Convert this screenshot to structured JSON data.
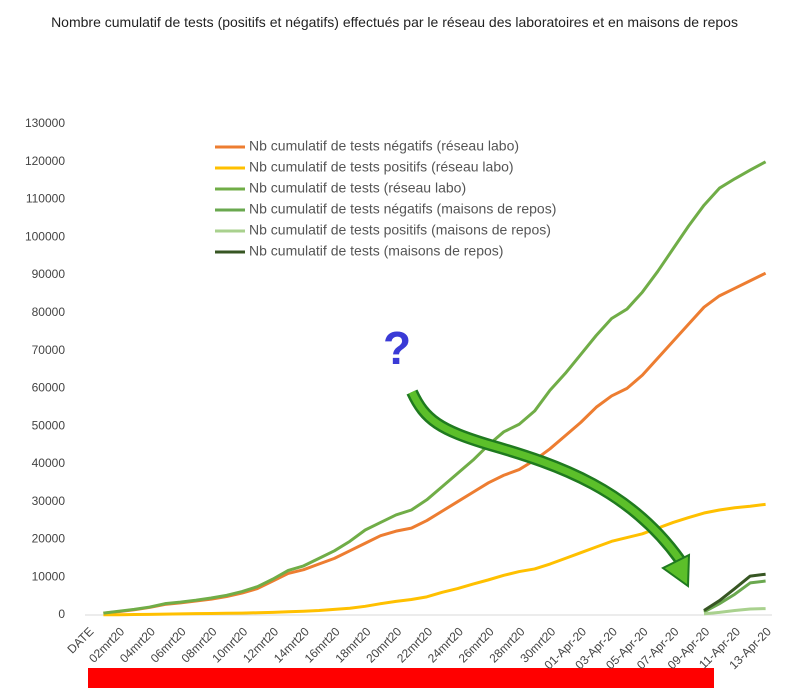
{
  "chart_data": {
    "type": "line",
    "title": "Nombre cumulatif de tests (positifs et négatifs) effectués par le réseau des laboratoires et en maisons de repos",
    "annotation": "?",
    "categories": [
      "DATE",
      null,
      "02mrt20",
      null,
      "04mrt20",
      null,
      "06mrt20",
      null,
      "08mrt20",
      null,
      "10mrt20",
      null,
      "12mrt20",
      null,
      "14mrt20",
      null,
      "16mrt20",
      null,
      "18mrt20",
      null,
      "20mrt20",
      null,
      "22mrt20",
      null,
      "24mrt20",
      null,
      "26mrt20",
      null,
      "28mrt20",
      null,
      "30mrt20",
      null,
      "01-Apr-20",
      null,
      "03-Apr-20",
      null,
      "05-Apr-20",
      null,
      "07-Apr-20",
      null,
      "09-Apr-20",
      null,
      "11-Apr-20",
      null,
      "13-Apr-20"
    ],
    "ylim": [
      0,
      130000
    ],
    "yticks": [
      0,
      10000,
      20000,
      30000,
      40000,
      50000,
      60000,
      70000,
      80000,
      90000,
      100000,
      110000,
      120000,
      130000
    ],
    "grid": false,
    "legend": "top",
    "series": [
      {
        "name": "Nb cumulatif de tests négatifs (réseau labo)",
        "color": "#ed7d31",
        "values": [
          null,
          450,
          900,
          1400,
          2000,
          2800,
          3200,
          3700,
          4200,
          4900,
          5800,
          7000,
          9000,
          11000,
          12000,
          13500,
          15000,
          17000,
          19000,
          21000,
          22200,
          23000,
          25000,
          27500,
          30000,
          32500,
          35000,
          37000,
          38500,
          41000,
          44000,
          47500,
          51000,
          55000,
          58000,
          60000,
          63500,
          68000,
          72500,
          77000,
          81500,
          84500,
          86500,
          88500,
          90500
        ]
      },
      {
        "name": "Nb cumulatif de tests positifs (réseau labo)",
        "color": "#ffc000",
        "values": [
          null,
          50,
          80,
          120,
          170,
          230,
          300,
          350,
          400,
          450,
          500,
          600,
          700,
          850,
          1000,
          1200,
          1500,
          1800,
          2300,
          3000,
          3600,
          4100,
          4800,
          6000,
          7000,
          8200,
          9300,
          10500,
          11500,
          12200,
          13500,
          15000,
          16500,
          18000,
          19500,
          20500,
          21500,
          23000,
          24500,
          25800,
          27000,
          27800,
          28400,
          28800,
          29300
        ]
      },
      {
        "name": "Nb cumulatif de tests (réseau labo)",
        "color": "#70ad47",
        "values": [
          null,
          500,
          1000,
          1500,
          2100,
          3000,
          3400,
          3900,
          4500,
          5200,
          6200,
          7500,
          9500,
          11800,
          13000,
          15000,
          17000,
          19500,
          22500,
          24500,
          26500,
          27800,
          30500,
          34000,
          37500,
          41000,
          45000,
          48500,
          50500,
          54000,
          59500,
          64000,
          69000,
          74000,
          78500,
          81000,
          85500,
          91000,
          97000,
          103000,
          108500,
          113000,
          115500,
          117800,
          120000
        ]
      },
      {
        "name": "Nb cumulatif de tests négatifs (maisons de repos)",
        "color": "#6aa84f",
        "values": [
          null,
          null,
          null,
          null,
          null,
          null,
          null,
          null,
          null,
          null,
          null,
          null,
          null,
          null,
          null,
          null,
          null,
          null,
          null,
          null,
          null,
          null,
          null,
          null,
          null,
          null,
          null,
          null,
          null,
          null,
          null,
          null,
          null,
          null,
          null,
          null,
          null,
          null,
          null,
          null,
          800,
          3000,
          5500,
          8500,
          9000
        ]
      },
      {
        "name": "Nb cumulatif de tests positifs (maisons de repos)",
        "color": "#a9d18e",
        "values": [
          null,
          null,
          null,
          null,
          null,
          null,
          null,
          null,
          null,
          null,
          null,
          null,
          null,
          null,
          null,
          null,
          null,
          null,
          null,
          null,
          null,
          null,
          null,
          null,
          null,
          null,
          null,
          null,
          null,
          null,
          null,
          null,
          null,
          null,
          null,
          null,
          null,
          null,
          null,
          null,
          300,
          700,
          1200,
          1600,
          1700
        ]
      },
      {
        "name": "Nb cumulatif de tests (maisons de repos)",
        "color": "#375623",
        "values": [
          null,
          null,
          null,
          null,
          null,
          null,
          null,
          null,
          null,
          null,
          null,
          null,
          null,
          null,
          null,
          null,
          null,
          null,
          null,
          null,
          null,
          null,
          null,
          null,
          null,
          null,
          null,
          null,
          null,
          null,
          null,
          null,
          null,
          null,
          null,
          null,
          null,
          null,
          null,
          null,
          1200,
          3800,
          7000,
          10300,
          10800
        ]
      }
    ]
  }
}
